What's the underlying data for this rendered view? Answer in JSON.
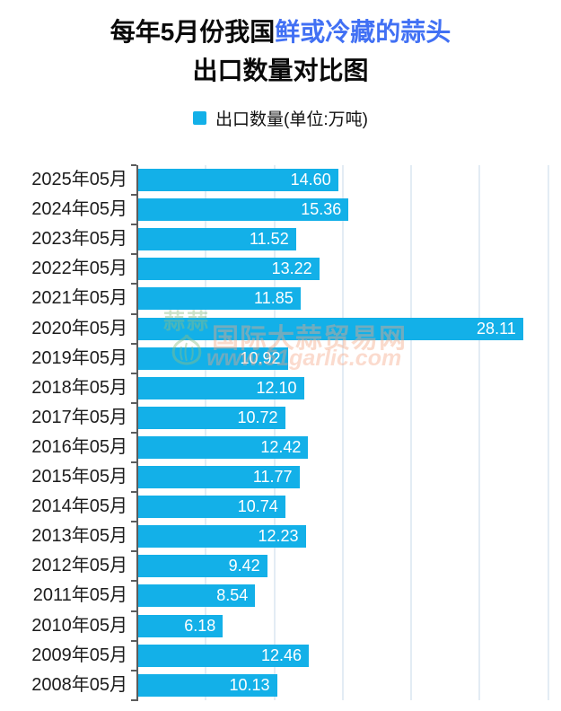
{
  "title": {
    "line1_black": "每年5月份我国",
    "line1_blue": "鲜或冷藏的蒜头",
    "line2": "出口数量对比图",
    "accent_color": "#4170f4"
  },
  "legend": {
    "label": "出口数量(单位:万吨)",
    "swatch_color": "#13b0e8"
  },
  "watermark": {
    "line1": "国际大蒜贸易网",
    "line2": "www.51garlic.com",
    "logo_chars": "蒜蒜",
    "icon": "garlic-logo-icon"
  },
  "chart_data": {
    "type": "bar",
    "orientation": "horizontal",
    "title": "每年5月份我国鲜或冷藏的蒜头出口数量对比图",
    "series_name": "出口数量(单位:万吨)",
    "xlabel": "",
    "ylabel": "",
    "categories": [
      "2025年05月",
      "2024年05月",
      "2023年05月",
      "2022年05月",
      "2021年05月",
      "2020年05月",
      "2019年05月",
      "2018年05月",
      "2017年05月",
      "2016年05月",
      "2015年05月",
      "2014年05月",
      "2013年05月",
      "2012年05月",
      "2011年05月",
      "2010年05月",
      "2009年05月",
      "2008年05月"
    ],
    "values": [
      14.6,
      15.36,
      11.52,
      13.22,
      11.85,
      28.11,
      10.92,
      12.1,
      10.72,
      12.42,
      11.77,
      10.74,
      12.23,
      9.42,
      8.54,
      6.18,
      12.46,
      10.13
    ],
    "value_labels": [
      "14.60",
      "15.36",
      "11.52",
      "13.22",
      "11.85",
      "28.11",
      "10.92",
      "12.10",
      "10.72",
      "12.42",
      "11.77",
      "10.74",
      "12.23",
      "9.42",
      "8.54",
      "6.18",
      "12.46",
      "10.13"
    ],
    "xlim": [
      0,
      30.55
    ],
    "gridline_step": 5,
    "grid": true,
    "legend_position": "top",
    "bar_color": "#13b0e8",
    "value_label_color": "#ffffff"
  }
}
